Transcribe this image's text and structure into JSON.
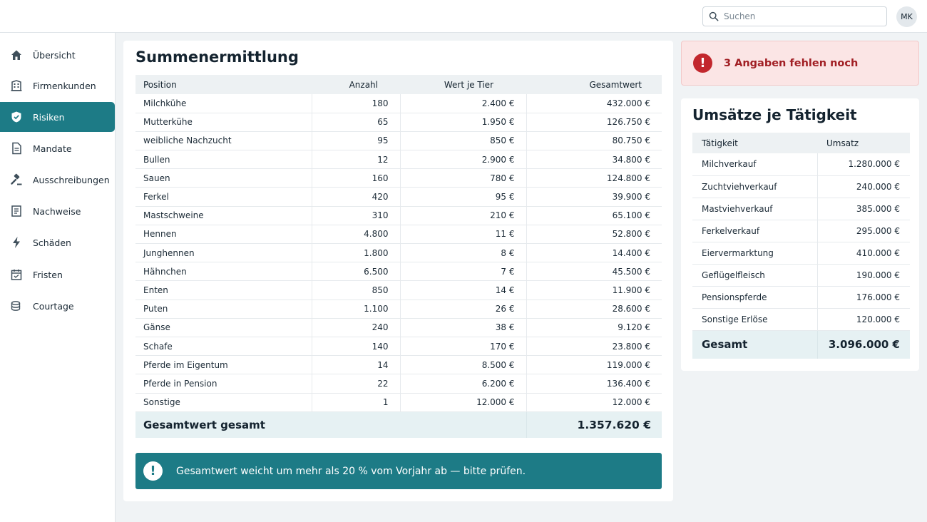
{
  "header": {
    "search_placeholder": "Suchen",
    "avatar_initials": "MK"
  },
  "sidebar": {
    "items": [
      {
        "label": "Übersicht",
        "icon": "home-icon"
      },
      {
        "label": "Firmenkunden",
        "icon": "building-icon"
      },
      {
        "label": "Risiken",
        "icon": "shield-icon",
        "active": true
      },
      {
        "label": "Mandate",
        "icon": "document-icon"
      },
      {
        "label": "Ausschreibungen",
        "icon": "gavel-icon"
      },
      {
        "label": "Nachweise",
        "icon": "checklist-icon"
      },
      {
        "label": "Schäden",
        "icon": "lightning-icon"
      },
      {
        "label": "Fristen",
        "icon": "calendar-icon"
      },
      {
        "label": "Courtage",
        "icon": "coins-icon"
      }
    ]
  },
  "summe": {
    "title": "Summenermittlung",
    "columns": [
      "Position",
      "Anzahl",
      "Wert je Tier",
      "Gesamtwert"
    ],
    "rows": [
      [
        "Milchkühe",
        "180",
        "2.400 €",
        "432.000 €"
      ],
      [
        "Mutterkühe",
        "65",
        "1.950 €",
        "126.750 €"
      ],
      [
        "weibliche Nachzucht",
        "95",
        "850 €",
        "80.750 €"
      ],
      [
        "Bullen",
        "12",
        "2.900 €",
        "34.800 €"
      ],
      [
        "Sauen",
        "160",
        "780 €",
        "124.800 €"
      ],
      [
        "Ferkel",
        "420",
        "95 €",
        "39.900 €"
      ],
      [
        "Mastschweine",
        "310",
        "210 €",
        "65.100 €"
      ],
      [
        "Hennen",
        "4.800",
        "11 €",
        "52.800 €"
      ],
      [
        "Junghennen",
        "1.800",
        "8 €",
        "14.400 €"
      ],
      [
        "Hähnchen",
        "6.500",
        "7 €",
        "45.500 €"
      ],
      [
        "Enten",
        "850",
        "14 €",
        "11.900 €"
      ],
      [
        "Puten",
        "1.100",
        "26 €",
        "28.600 €"
      ],
      [
        "Gänse",
        "240",
        "38 €",
        "9.120 €"
      ],
      [
        "Schafe",
        "140",
        "170 €",
        "23.800 €"
      ],
      [
        "Pferde im Eigentum",
        "14",
        "8.500 €",
        "119.000 €"
      ],
      [
        "Pferde in Pension",
        "22",
        "6.200 €",
        "136.400 €"
      ],
      [
        "Sonstige",
        "1",
        "12.000 €",
        "12.000 €"
      ]
    ],
    "total_label": "Gesamtwert gesamt",
    "total_value": "1.357.620 €",
    "warning": "Gesamtwert weicht um mehr als 20 % vom Vorjahr ab — bitte prüfen."
  },
  "missing_alert": "3 Angaben fehlen noch",
  "umsatz": {
    "title": "Umsätze je Tätigkeit",
    "columns": [
      "Tätigkeit",
      "Umsatz"
    ],
    "rows": [
      [
        "Milchverkauf",
        "1.280.000 €"
      ],
      [
        "Zuchtviehverkauf",
        "240.000 €"
      ],
      [
        "Mastviehverkauf",
        "385.000 €"
      ],
      [
        "Ferkelverkauf",
        "295.000 €"
      ],
      [
        "Eiervermarktung",
        "410.000 €"
      ],
      [
        "Geflügelfleisch",
        "190.000 €"
      ],
      [
        "Pensionspferde",
        "176.000 €"
      ],
      [
        "Sonstige Erlöse",
        "120.000 €"
      ]
    ],
    "total_label": "Gesamt",
    "total_value": "3.096.000 €"
  },
  "colors": {
    "accent": "#1d7b86",
    "danger": "#c2272d",
    "danger_bg": "#fbe5e5"
  }
}
